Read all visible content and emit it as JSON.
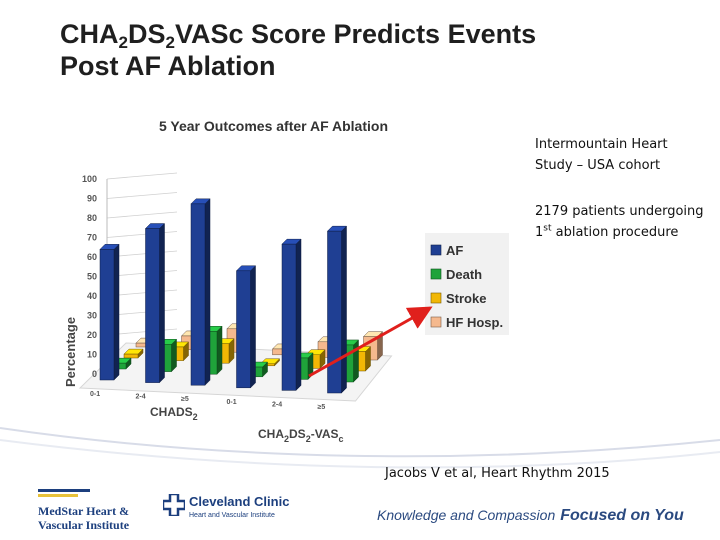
{
  "title": {
    "part1": "CHA",
    "sub1": "2",
    "part2": "DS",
    "sub2": "2",
    "part3": "VASc Score Predicts Events",
    "line2": "Post AF Ablation"
  },
  "side_notes": {
    "cohort": "Intermountain Heart Study – USA cohort",
    "patients_prefix": "2179 patients undergoing 1",
    "patients_sup": "st",
    "patients_suffix": " ablation procedure"
  },
  "citation": "Jacobs V et al, Heart Rhythm 2015",
  "footer": {
    "logo1_line1": "MedStar Heart &",
    "logo1_line2": "Vascular Institute",
    "logo2_name": "Cleveland Clinic",
    "logo2_sub": "Heart and Vascular Institute",
    "tagline_a": "Knowledge and Compassion",
    "tagline_b": "Focused on You"
  },
  "colors": {
    "af": "#1f3f93",
    "death": "#1fa33a",
    "stroke": "#f2b705",
    "hf": "#f5b98e",
    "arrow": "#e0201c",
    "text": "#1f1f1f"
  },
  "chart_data": {
    "type": "bar",
    "title": "5 Year Outcomes after AF Ablation",
    "ylabel": "Percentage",
    "xlabel_front": "CHADS",
    "xlabel_front_sub": "2",
    "xlabel_back": "CHA",
    "xlabel_back_sub1": "2",
    "xlabel_back_mid": "DS",
    "xlabel_back_sub2": "2",
    "xlabel_back_end": "-VAS",
    "xlabel_back_sub3": "c",
    "ylim": [
      0,
      100
    ],
    "yticks": [
      0,
      10,
      20,
      30,
      40,
      50,
      60,
      70,
      80,
      90,
      100
    ],
    "groups": [
      {
        "scheme": "CHADS2",
        "category": "0-1"
      },
      {
        "scheme": "CHADS2",
        "category": "2-4"
      },
      {
        "scheme": "CHADS2",
        "category": "≥5"
      },
      {
        "scheme": "CHA2DS2-VASc",
        "category": "0-1"
      },
      {
        "scheme": "CHA2DS2-VASc",
        "category": "2-4"
      },
      {
        "scheme": "CHA2DS2-VASc",
        "category": "≥5"
      }
    ],
    "series": [
      {
        "name": "AF",
        "values": [
          67,
          79,
          93,
          60,
          75,
          83
        ]
      },
      {
        "name": "Death",
        "values": [
          3,
          14,
          22,
          5,
          11,
          19
        ]
      },
      {
        "name": "Stroke",
        "values": [
          2,
          7,
          10,
          1,
          7,
          10
        ]
      },
      {
        "name": "HF Hosp.",
        "values": [
          2,
          7,
          12,
          3,
          8,
          12
        ]
      }
    ]
  }
}
